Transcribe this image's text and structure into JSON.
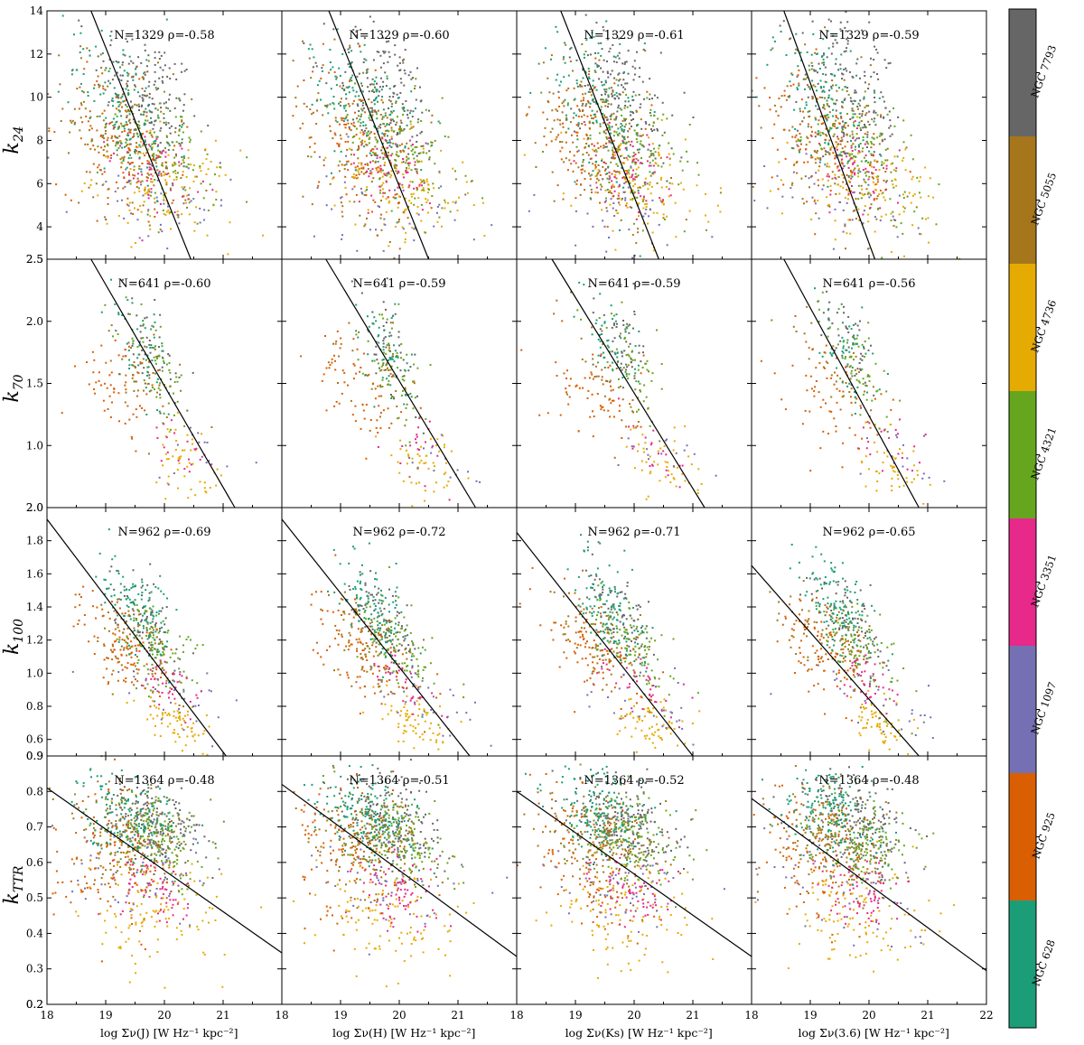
{
  "chart_data": {
    "type": "scatter",
    "x_columns": [
      {
        "xlabel": "log Σν(J) [W Hz⁻¹ kpc⁻²]",
        "band": "J"
      },
      {
        "xlabel": "log Σν(H) [W Hz⁻¹ kpc⁻²]",
        "band": "H"
      },
      {
        "xlabel": "log Σν(Ks) [W Hz⁻¹ kpc⁻²]",
        "band": "Ks"
      },
      {
        "xlabel": "log Σν(3.6) [W Hz⁻¹ kpc⁻²]",
        "band": "3.6"
      }
    ],
    "xlim": [
      18,
      22
    ],
    "xticks": [
      "18",
      "19",
      "20",
      "21",
      "22"
    ],
    "rows": [
      {
        "ylabel": "k",
        "ysub": "24",
        "ylim": [
          2.5,
          14
        ],
        "yticks": [
          4,
          6,
          8,
          10,
          12,
          14
        ],
        "n": "1329",
        "annotations": [
          "N=1329 ρ=-0.58",
          "N=1329 ρ=-0.60",
          "N=1329 ρ=-0.61",
          "N=1329 ρ=-0.59"
        ],
        "fit_lines": [
          [
            [
              18.75,
              14.0
            ],
            [
              20.45,
              2.5
            ]
          ],
          [
            [
              18.8,
              14.0
            ],
            [
              20.5,
              2.5
            ]
          ],
          [
            [
              18.75,
              14.0
            ],
            [
              20.42,
              2.5
            ]
          ],
          [
            [
              18.55,
              14.0
            ],
            [
              20.1,
              2.5
            ]
          ]
        ]
      },
      {
        "ylabel": "k",
        "ysub": "70",
        "ylim": [
          0.5,
          2.5
        ],
        "yticks": [
          1.0,
          1.5,
          2.0,
          2.5
        ],
        "n": "641",
        "annotations": [
          "N=641 ρ=-0.60",
          "N=641 ρ=-0.59",
          "N=641 ρ=-0.59",
          "N=641 ρ=-0.56"
        ],
        "fit_lines": [
          [
            [
              18.75,
              2.5
            ],
            [
              21.2,
              0.5
            ]
          ],
          [
            [
              18.75,
              2.5
            ],
            [
              21.3,
              0.5
            ]
          ],
          [
            [
              18.6,
              2.5
            ],
            [
              21.2,
              0.5
            ]
          ],
          [
            [
              18.55,
              2.5
            ],
            [
              20.85,
              0.5
            ]
          ]
        ]
      },
      {
        "ylabel": "k",
        "ysub": "100",
        "ylim": [
          0.5,
          2.0
        ],
        "yticks": [
          0.6,
          0.8,
          1.0,
          1.2,
          1.4,
          1.6,
          1.8,
          2.0
        ],
        "n": "962",
        "annotations": [
          "N=962 ρ=-0.69",
          "N=962 ρ=-0.72",
          "N=962 ρ=-0.71",
          "N=962 ρ=-0.65"
        ],
        "fit_lines": [
          [
            [
              18.0,
              1.93
            ],
            [
              21.05,
              0.5
            ]
          ],
          [
            [
              18.0,
              1.93
            ],
            [
              21.2,
              0.5
            ]
          ],
          [
            [
              18.0,
              1.85
            ],
            [
              21.0,
              0.5
            ]
          ],
          [
            [
              18.0,
              1.65
            ],
            [
              20.85,
              0.5
            ]
          ]
        ]
      },
      {
        "ylabel": "k",
        "ysub": "TTR",
        "ylim": [
          0.2,
          0.9
        ],
        "yticks": [
          0.2,
          0.3,
          0.4,
          0.5,
          0.6,
          0.7,
          0.8,
          0.9
        ],
        "n": "1364",
        "annotations": [
          "N=1364 ρ=-0.48",
          "N=1364 ρ=-0.51",
          "N=1364 ρ=-0.52",
          "N=1364 ρ=-0.48"
        ],
        "fit_lines": [
          [
            [
              18.0,
              0.81
            ],
            [
              22.0,
              0.345
            ]
          ],
          [
            [
              18.0,
              0.82
            ],
            [
              22.0,
              0.335
            ]
          ],
          [
            [
              18.0,
              0.8
            ],
            [
              22.0,
              0.335
            ]
          ],
          [
            [
              18.0,
              0.78
            ],
            [
              22.0,
              0.295
            ]
          ]
        ]
      }
    ],
    "galaxies": [
      {
        "name": "NGC 7793",
        "color": "#666666"
      },
      {
        "name": "NGC 5055",
        "color": "#a6761d"
      },
      {
        "name": "NGC 4736",
        "color": "#e6ab02"
      },
      {
        "name": "NGC 4321",
        "color": "#66a61e"
      },
      {
        "name": "NGC 3351",
        "color": "#e7298a"
      },
      {
        "name": "NGC 1097",
        "color": "#7570b3"
      },
      {
        "name": "NGC 925",
        "color": "#d95f02"
      },
      {
        "name": "NGC 628",
        "color": "#1b9e77"
      }
    ]
  }
}
